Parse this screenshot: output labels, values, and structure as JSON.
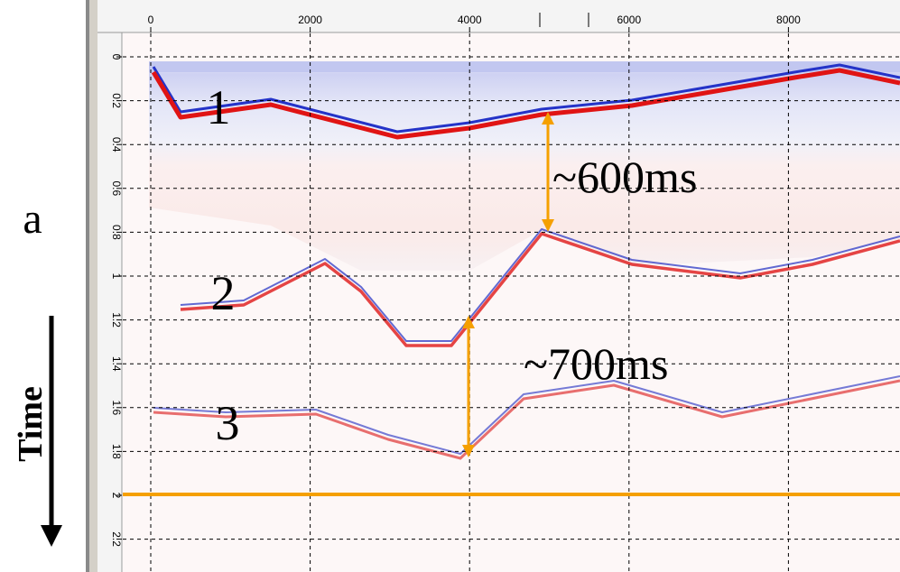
{
  "figure": {
    "panel_label": "a",
    "time_label": "Time",
    "x_ticks": [
      "0",
      "2000",
      "4000",
      "6000",
      "8000"
    ],
    "y_ticks": [
      "0",
      "0.2",
      "0.4",
      "0.6",
      "0.8",
      "1",
      "1.2",
      "1.4",
      "1.6",
      "1.8",
      "2",
      "2.2"
    ],
    "horizon_labels": [
      "1",
      "2",
      "3"
    ],
    "annotations": [
      "~600ms",
      "~700ms"
    ]
  }
}
